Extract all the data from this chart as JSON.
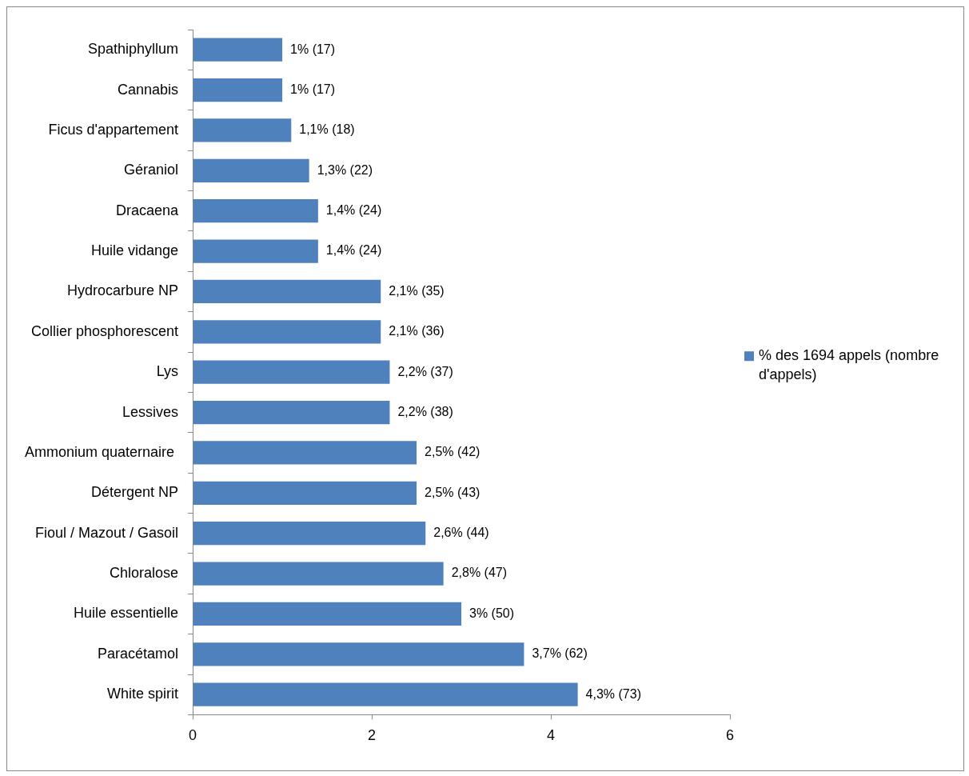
{
  "chart_data": {
    "type": "bar",
    "orientation": "horizontal",
    "categories": [
      "Spathiphyllum",
      "Cannabis",
      "Ficus d'appartement",
      "Géraniol",
      "Dracaena",
      "Huile vidange",
      "Hydrocarbure NP",
      "Collier phosphorescent",
      "Lys",
      "Lessives",
      "Ammonium quaternaire ",
      "Détergent NP",
      "Fioul / Mazout / Gasoil",
      "Chloralose",
      "Huile essentielle",
      "Paracétamol",
      "White spirit"
    ],
    "series": [
      {
        "name": "% des 1694 appels (nombre d'appels)",
        "color": "#4f81bd",
        "values": [
          1,
          1,
          1.1,
          1.3,
          1.4,
          1.4,
          2.1,
          2.1,
          2.2,
          2.2,
          2.5,
          2.5,
          2.6,
          2.8,
          3,
          3.7,
          4.3
        ],
        "value_labels": [
          "1% (17)",
          "1% (17)",
          "1,1% (18)",
          "1,3% (22)",
          "1,4% (24)",
          "1,4% (24)",
          "2,1% (35)",
          "2,1% (36)",
          "2,2% (37)",
          "2,2% (38)",
          "2,5% (42)",
          "2,5% (43)",
          "2,6% (44)",
          "2,8% (47)",
          "3% (50)",
          "3,7% (62)",
          "4,3% (73)"
        ]
      }
    ],
    "xlim": [
      0,
      6
    ],
    "xticks": [
      0,
      2,
      4,
      6
    ],
    "grid": false,
    "legend": "right"
  }
}
